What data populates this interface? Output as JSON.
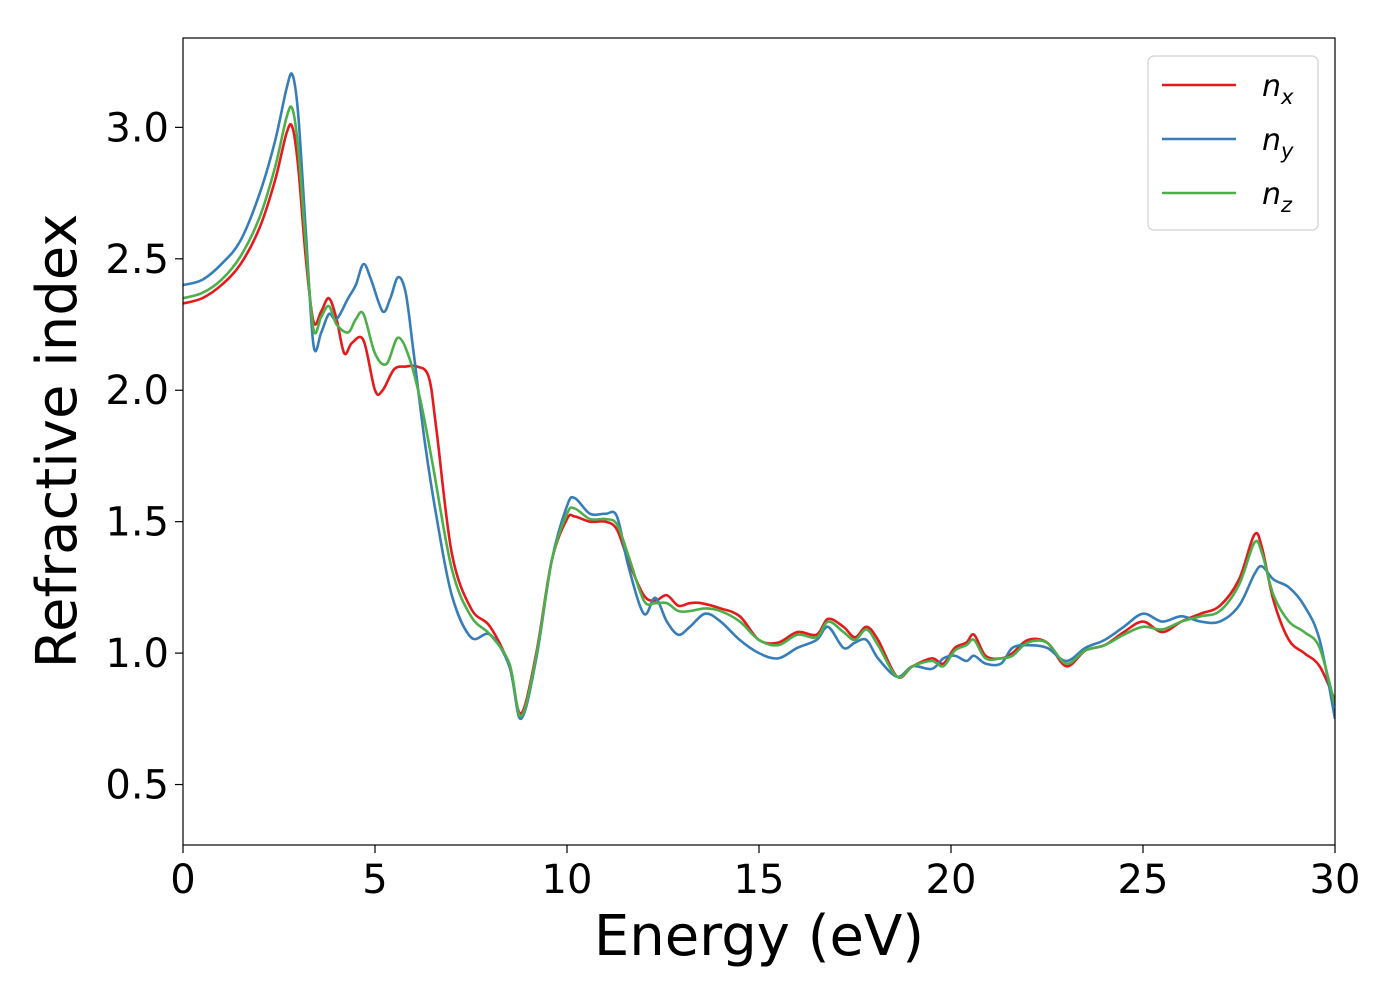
{
  "chart_data": {
    "type": "line",
    "title": "",
    "xlabel": "Energy (eV)",
    "ylabel": "Refractive index",
    "xlim": [
      0,
      30
    ],
    "ylim": [
      0.27,
      3.34
    ],
    "xticks": [
      "0",
      "5",
      "10",
      "15",
      "20",
      "25",
      "30"
    ],
    "yticks": [
      "0.5",
      "1.0",
      "1.5",
      "2.0",
      "2.5",
      "3.0"
    ],
    "grid": false,
    "legend_position": "top-right",
    "series": [
      {
        "name": "n",
        "subscript": "x",
        "color": "#e41a1c",
        "x": [
          0,
          0.5,
          1.0,
          1.5,
          2.0,
          2.4,
          2.7,
          2.85,
          3.0,
          3.2,
          3.4,
          3.6,
          3.8,
          4.0,
          4.2,
          4.4,
          4.7,
          5.0,
          5.2,
          5.5,
          5.8,
          6.1,
          6.4,
          6.6,
          7.0,
          7.5,
          8.0,
          8.5,
          8.8,
          9.2,
          9.6,
          10.0,
          10.2,
          10.6,
          11.0,
          11.3,
          11.6,
          12.0,
          12.3,
          12.6,
          12.9,
          13.2,
          13.5,
          14.0,
          14.5,
          15.0,
          15.5,
          16.0,
          16.5,
          16.8,
          17.2,
          17.5,
          17.8,
          18.1,
          18.6,
          19.0,
          19.5,
          19.8,
          20.1,
          20.4,
          20.6,
          20.9,
          21.3,
          21.6,
          22.0,
          22.5,
          23.0,
          23.5,
          24.0,
          24.5,
          25.0,
          25.5,
          26.0,
          26.5,
          27.0,
          27.5,
          27.9,
          28.1,
          28.4,
          28.8,
          29.2,
          29.6,
          30.0
        ],
        "values": [
          2.33,
          2.35,
          2.4,
          2.48,
          2.62,
          2.8,
          2.98,
          3.0,
          2.85,
          2.5,
          2.26,
          2.3,
          2.35,
          2.27,
          2.14,
          2.18,
          2.19,
          2.0,
          2.0,
          2.08,
          2.09,
          2.09,
          2.05,
          1.85,
          1.38,
          1.17,
          1.1,
          0.95,
          0.77,
          1.0,
          1.35,
          1.51,
          1.52,
          1.5,
          1.5,
          1.47,
          1.35,
          1.22,
          1.2,
          1.22,
          1.18,
          1.19,
          1.19,
          1.17,
          1.14,
          1.05,
          1.04,
          1.08,
          1.07,
          1.13,
          1.1,
          1.06,
          1.1,
          1.05,
          0.91,
          0.95,
          0.98,
          0.96,
          1.02,
          1.04,
          1.07,
          0.99,
          0.98,
          1.0,
          1.05,
          1.04,
          0.95,
          1.01,
          1.03,
          1.08,
          1.12,
          1.08,
          1.12,
          1.15,
          1.18,
          1.28,
          1.45,
          1.4,
          1.2,
          1.05,
          1.0,
          0.95,
          0.82
        ]
      },
      {
        "name": "n",
        "subscript": "y",
        "color": "#377eb8",
        "x": [
          0,
          0.5,
          1.0,
          1.5,
          2.0,
          2.4,
          2.7,
          2.85,
          3.0,
          3.2,
          3.4,
          3.6,
          3.8,
          4.0,
          4.3,
          4.5,
          4.7,
          4.9,
          5.2,
          5.4,
          5.6,
          5.8,
          6.0,
          6.3,
          6.6,
          7.0,
          7.5,
          8.0,
          8.5,
          8.8,
          9.2,
          9.6,
          10.0,
          10.2,
          10.6,
          11.0,
          11.3,
          11.6,
          12.0,
          12.3,
          12.6,
          12.9,
          13.2,
          13.6,
          14.0,
          14.5,
          15.0,
          15.5,
          16.0,
          16.5,
          16.8,
          17.2,
          17.5,
          17.8,
          18.1,
          18.6,
          19.0,
          19.5,
          19.8,
          20.1,
          20.4,
          20.6,
          20.9,
          21.3,
          21.6,
          22.0,
          22.5,
          23.0,
          23.5,
          24.0,
          24.5,
          25.0,
          25.5,
          26.0,
          26.5,
          27.0,
          27.5,
          27.9,
          28.1,
          28.4,
          28.8,
          29.2,
          29.6,
          30.0
        ],
        "values": [
          2.4,
          2.42,
          2.48,
          2.57,
          2.75,
          2.95,
          3.15,
          3.2,
          3.05,
          2.6,
          2.17,
          2.22,
          2.29,
          2.27,
          2.35,
          2.4,
          2.48,
          2.42,
          2.3,
          2.35,
          2.43,
          2.37,
          2.15,
          1.8,
          1.52,
          1.22,
          1.06,
          1.07,
          0.95,
          0.75,
          0.98,
          1.35,
          1.56,
          1.59,
          1.53,
          1.53,
          1.52,
          1.33,
          1.15,
          1.21,
          1.12,
          1.07,
          1.1,
          1.15,
          1.12,
          1.05,
          1.0,
          0.98,
          1.02,
          1.05,
          1.1,
          1.02,
          1.04,
          1.05,
          0.98,
          0.91,
          0.95,
          0.94,
          0.98,
          0.99,
          0.97,
          0.99,
          0.96,
          0.96,
          1.02,
          1.03,
          1.02,
          0.97,
          1.02,
          1.05,
          1.1,
          1.15,
          1.12,
          1.14,
          1.12,
          1.12,
          1.18,
          1.3,
          1.33,
          1.28,
          1.25,
          1.18,
          1.05,
          0.75
        ]
      },
      {
        "name": "n",
        "subscript": "z",
        "color": "#4daf4a",
        "x": [
          0,
          0.5,
          1.0,
          1.5,
          2.0,
          2.4,
          2.7,
          2.85,
          3.0,
          3.2,
          3.4,
          3.6,
          3.8,
          4.0,
          4.3,
          4.5,
          4.7,
          5.0,
          5.3,
          5.6,
          5.9,
          6.2,
          6.5,
          7.0,
          7.5,
          8.0,
          8.5,
          8.8,
          9.2,
          9.6,
          10.0,
          10.2,
          10.6,
          11.0,
          11.3,
          11.6,
          12.0,
          12.3,
          12.6,
          12.9,
          13.2,
          13.6,
          14.0,
          14.5,
          15.0,
          15.5,
          16.0,
          16.5,
          16.8,
          17.2,
          17.5,
          17.8,
          18.1,
          18.6,
          19.0,
          19.5,
          19.8,
          20.1,
          20.4,
          20.6,
          20.9,
          21.3,
          21.6,
          22.0,
          22.5,
          23.0,
          23.5,
          24.0,
          24.5,
          25.0,
          25.5,
          26.0,
          26.5,
          27.0,
          27.5,
          27.9,
          28.1,
          28.4,
          28.8,
          29.2,
          29.6,
          30.0
        ],
        "values": [
          2.35,
          2.37,
          2.42,
          2.51,
          2.66,
          2.85,
          3.04,
          3.07,
          2.92,
          2.55,
          2.23,
          2.28,
          2.32,
          2.25,
          2.22,
          2.27,
          2.29,
          2.14,
          2.1,
          2.2,
          2.12,
          1.95,
          1.72,
          1.32,
          1.14,
          1.07,
          0.96,
          0.76,
          0.99,
          1.35,
          1.53,
          1.55,
          1.51,
          1.51,
          1.49,
          1.37,
          1.2,
          1.19,
          1.19,
          1.16,
          1.16,
          1.17,
          1.16,
          1.12,
          1.05,
          1.03,
          1.07,
          1.06,
          1.12,
          1.08,
          1.05,
          1.09,
          1.03,
          0.91,
          0.95,
          0.97,
          0.95,
          1.01,
          1.03,
          1.05,
          0.98,
          0.98,
          0.99,
          1.04,
          1.04,
          0.96,
          1.01,
          1.03,
          1.07,
          1.1,
          1.09,
          1.12,
          1.14,
          1.16,
          1.26,
          1.42,
          1.38,
          1.22,
          1.12,
          1.08,
          1.02,
          0.8
        ]
      }
    ]
  }
}
